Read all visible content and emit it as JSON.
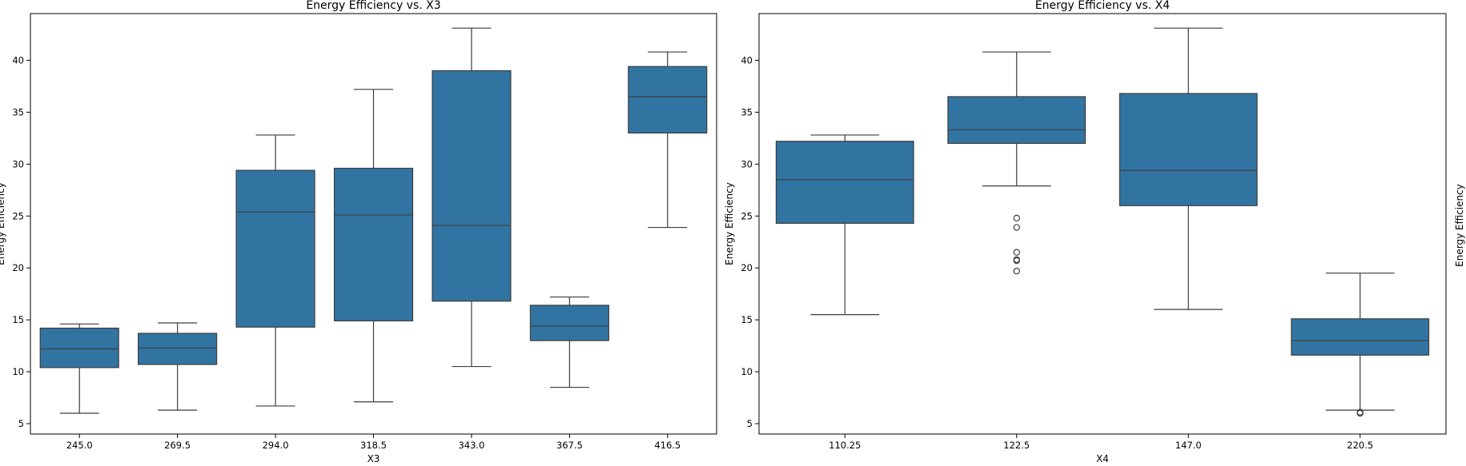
{
  "colors": {
    "box_fill": "#3274a1",
    "box_edge": "#3d3d3d",
    "axis": "#000000"
  },
  "chart_data": [
    {
      "type": "box",
      "title": "Energy Efficiency vs. X3",
      "xlabel": "X3",
      "ylabel": "Energy Efficiency",
      "ylim": [
        4,
        44.5
      ],
      "yticks": [
        5,
        10,
        15,
        20,
        25,
        30,
        35,
        40
      ],
      "categories": [
        "245.0",
        "269.5",
        "294.0",
        "318.5",
        "343.0",
        "367.5",
        "416.5"
      ],
      "boxes": [
        {
          "whisker_low": 6.0,
          "q1": 10.4,
          "median": 12.2,
          "q3": 14.2,
          "whisker_high": 14.6,
          "outliers": []
        },
        {
          "whisker_low": 6.3,
          "q1": 10.7,
          "median": 12.3,
          "q3": 13.7,
          "whisker_high": 14.7,
          "outliers": []
        },
        {
          "whisker_low": 6.7,
          "q1": 14.3,
          "median": 25.4,
          "q3": 29.4,
          "whisker_high": 32.8,
          "outliers": []
        },
        {
          "whisker_low": 7.1,
          "q1": 14.9,
          "median": 25.1,
          "q3": 29.6,
          "whisker_high": 37.2,
          "outliers": []
        },
        {
          "whisker_low": 10.5,
          "q1": 16.8,
          "median": 24.1,
          "q3": 39.0,
          "whisker_high": 43.1,
          "outliers": []
        },
        {
          "whisker_low": 8.5,
          "q1": 13.0,
          "median": 14.4,
          "q3": 16.4,
          "whisker_high": 17.2,
          "outliers": []
        },
        {
          "whisker_low": 23.9,
          "q1": 33.0,
          "median": 36.5,
          "q3": 39.4,
          "whisker_high": 40.8,
          "outliers": []
        }
      ]
    },
    {
      "type": "box",
      "title": "Energy Efficiency vs. X4",
      "xlabel": "X4",
      "ylabel": "Energy Efficiency",
      "ylim": [
        4,
        44.5
      ],
      "yticks": [
        5,
        10,
        15,
        20,
        25,
        30,
        35,
        40
      ],
      "categories": [
        "110.25",
        "122.5",
        "147.0",
        "220.5"
      ],
      "boxes": [
        {
          "whisker_low": 15.5,
          "q1": 24.3,
          "median": 28.5,
          "q3": 32.2,
          "whisker_high": 32.8,
          "outliers": []
        },
        {
          "whisker_low": 27.9,
          "q1": 32.0,
          "median": 33.3,
          "q3": 36.5,
          "whisker_high": 40.8,
          "outliers": [
            24.8,
            23.9,
            21.5,
            20.8,
            20.7,
            19.7
          ]
        },
        {
          "whisker_low": 16.0,
          "q1": 26.0,
          "median": 29.4,
          "q3": 36.8,
          "whisker_high": 43.1,
          "outliers": []
        },
        {
          "whisker_low": 6.3,
          "q1": 11.6,
          "median": 13.0,
          "q3": 15.1,
          "whisker_high": 19.5,
          "outliers": [
            6.1,
            6.0
          ]
        }
      ]
    }
  ],
  "third_panel": {
    "ylabel": "Energy Efficiency"
  }
}
